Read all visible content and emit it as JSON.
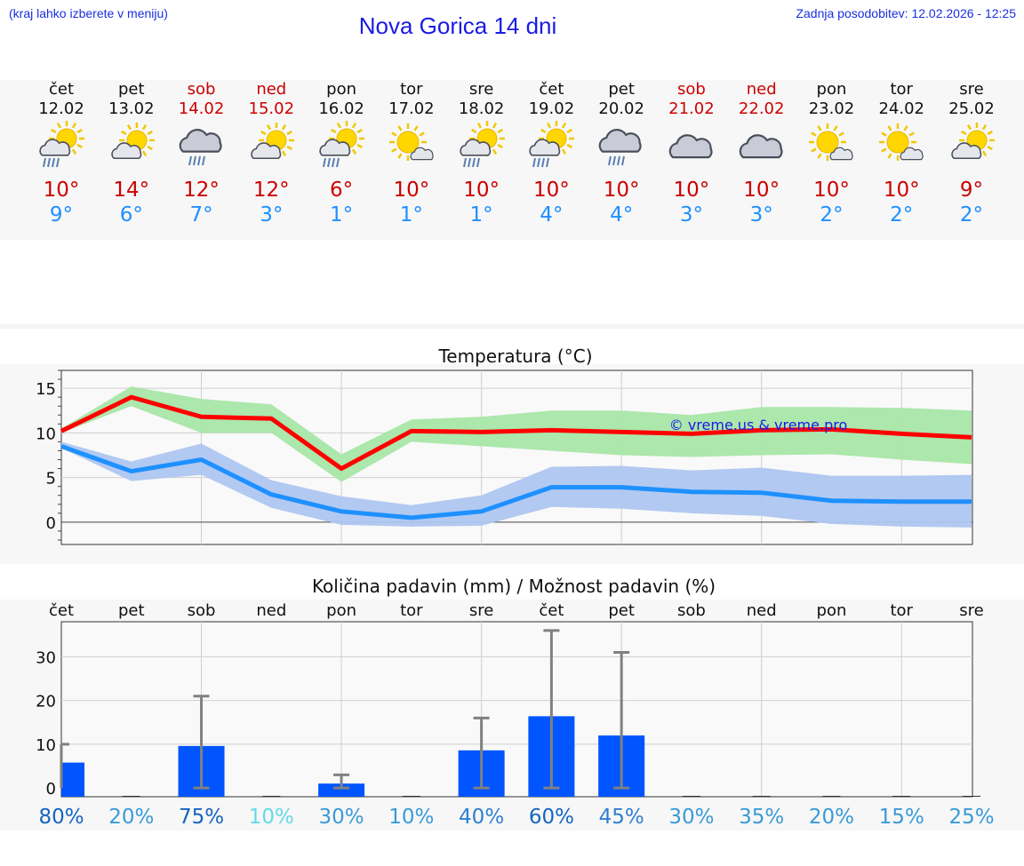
{
  "header": {
    "hint": "(kraj lahko izberete v meniju)",
    "title": "Nova Gorica 14 dni",
    "updated": "Zadnja posodobitev: 12.02.2026 - 12:25"
  },
  "days": [
    {
      "name": "čet",
      "date": "12.02",
      "weekend": false,
      "icon": "sun-cloud-rain-icon",
      "tmax": "10°",
      "tmin": "9°"
    },
    {
      "name": "pet",
      "date": "13.02",
      "weekend": false,
      "icon": "sun-cloud-icon",
      "tmax": "14°",
      "tmin": "6°"
    },
    {
      "name": "sob",
      "date": "14.02",
      "weekend": true,
      "icon": "cloud-rain-icon",
      "tmax": "12°",
      "tmin": "7°"
    },
    {
      "name": "ned",
      "date": "15.02",
      "weekend": true,
      "icon": "sun-cloud-icon",
      "tmax": "12°",
      "tmin": "3°"
    },
    {
      "name": "pon",
      "date": "16.02",
      "weekend": false,
      "icon": "sun-cloud-rain-icon",
      "tmax": "6°",
      "tmin": "1°"
    },
    {
      "name": "tor",
      "date": "17.02",
      "weekend": false,
      "icon": "sun-small-cloud-icon",
      "tmax": "10°",
      "tmin": "1°"
    },
    {
      "name": "sre",
      "date": "18.02",
      "weekend": false,
      "icon": "sun-cloud-rain-icon",
      "tmax": "10°",
      "tmin": "1°"
    },
    {
      "name": "čet",
      "date": "19.02",
      "weekend": false,
      "icon": "sun-cloud-rain-icon",
      "tmax": "10°",
      "tmin": "4°"
    },
    {
      "name": "pet",
      "date": "20.02",
      "weekend": false,
      "icon": "cloud-rain-icon",
      "tmax": "10°",
      "tmin": "4°"
    },
    {
      "name": "sob",
      "date": "21.02",
      "weekend": true,
      "icon": "cloud-icon",
      "tmax": "10°",
      "tmin": "3°"
    },
    {
      "name": "ned",
      "date": "22.02",
      "weekend": true,
      "icon": "cloud-icon",
      "tmax": "10°",
      "tmin": "3°"
    },
    {
      "name": "pon",
      "date": "23.02",
      "weekend": false,
      "icon": "sun-small-cloud-icon",
      "tmax": "10°",
      "tmin": "2°"
    },
    {
      "name": "tor",
      "date": "24.02",
      "weekend": false,
      "icon": "sun-small-cloud-icon",
      "tmax": "10°",
      "tmin": "2°"
    },
    {
      "name": "sre",
      "date": "25.02",
      "weekend": false,
      "icon": "sun-cloud-icon",
      "tmax": "9°",
      "tmin": "2°"
    }
  ],
  "chart_data": [
    {
      "type": "line",
      "title": "Temperatura (°C)",
      "watermark": "© vreme.us & vreme.pro",
      "ylim": [
        -2.5,
        17
      ],
      "yticks": [
        0,
        5,
        10,
        15
      ],
      "x": [
        "čet",
        "pet",
        "sob",
        "ned",
        "pon",
        "tor",
        "sre",
        "čet",
        "pet",
        "sob",
        "ned",
        "pon",
        "tor",
        "sre"
      ],
      "series": [
        {
          "name": "max",
          "color": "#ff0000",
          "values": [
            10.2,
            14,
            11.8,
            11.6,
            6,
            10.2,
            10.1,
            10.3,
            10.1,
            9.9,
            10.3,
            10.4,
            9.9,
            9.5
          ]
        },
        {
          "name": "max_low",
          "color": "#a8e6a8",
          "values": [
            10,
            13,
            10,
            10,
            4.5,
            9,
            8.5,
            8,
            7.5,
            7.3,
            7.5,
            7.6,
            7,
            6.5
          ]
        },
        {
          "name": "max_high",
          "color": "#a8e6a8",
          "values": [
            10.5,
            15.2,
            13.8,
            13.2,
            7.6,
            11.5,
            11.8,
            12.5,
            12.5,
            12,
            12.9,
            12.9,
            12.8,
            12.5
          ]
        },
        {
          "name": "min",
          "color": "#1e90ff",
          "values": [
            8.5,
            5.7,
            7,
            3.1,
            1.2,
            0.5,
            1.2,
            3.9,
            3.9,
            3.4,
            3.3,
            2.4,
            2.3,
            2.3
          ]
        },
        {
          "name": "min_low",
          "color": "#aec6f0",
          "values": [
            8.3,
            4.6,
            5.3,
            1.6,
            -0.3,
            -0.5,
            -0.4,
            1.7,
            1.5,
            1,
            0.7,
            -0.2,
            -0.5,
            -0.6
          ]
        },
        {
          "name": "min_high",
          "color": "#aec6f0",
          "values": [
            9,
            6.8,
            8.8,
            4.7,
            2.9,
            1.9,
            3,
            6.2,
            6.3,
            5.8,
            6.1,
            5.2,
            5.2,
            5.3
          ]
        }
      ]
    },
    {
      "type": "bar",
      "title": "Količina padavin (mm) / Možnost padavin (%)",
      "ylim": [
        -2,
        38
      ],
      "yticks": [
        0,
        10,
        20,
        30
      ],
      "categories": [
        "čet",
        "pet",
        "sob",
        "ned",
        "pon",
        "tor",
        "sre",
        "čet",
        "pet",
        "sob",
        "ned",
        "pon",
        "tor",
        "sre"
      ],
      "values": [
        5.8,
        0,
        9.6,
        0,
        1,
        0,
        8.6,
        16.4,
        12,
        0,
        0,
        0,
        0,
        0
      ],
      "error_high": [
        10,
        0,
        21,
        0,
        3,
        0,
        16,
        36,
        31,
        0,
        0,
        0,
        0,
        0
      ],
      "error_low": [
        0,
        0,
        0,
        0,
        0,
        0,
        0,
        0,
        0,
        0,
        0,
        0,
        0,
        0
      ],
      "probability": [
        "80%",
        "20%",
        "75%",
        "10%",
        "30%",
        "10%",
        "40%",
        "60%",
        "45%",
        "30%",
        "35%",
        "20%",
        "15%",
        "25%"
      ],
      "probability_colors": [
        "#1565c0",
        "#3a9ad9",
        "#1565c0",
        "#66d9e8",
        "#3a9ad9",
        "#3a9ad9",
        "#2f7fd1",
        "#1565c0",
        "#2f7fd1",
        "#3a9ad9",
        "#3a9ad9",
        "#3a9ad9",
        "#3a9ad9",
        "#3a9ad9"
      ],
      "bar_color": "#0055ff",
      "error_color": "#808080"
    }
  ]
}
